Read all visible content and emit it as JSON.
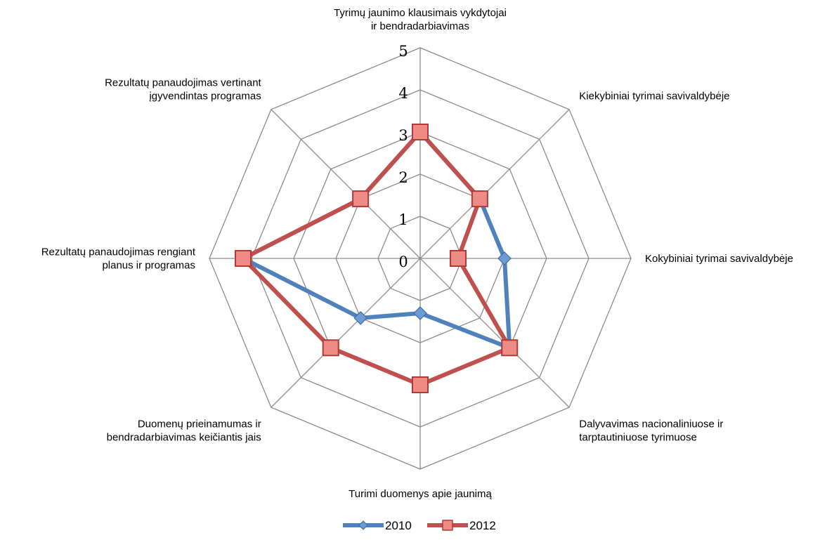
{
  "chart_data": {
    "type": "radar",
    "axes": [
      [
        "Tyrimų jaunimo klausimais vykdytojai",
        "ir bendradarbiavimas"
      ],
      [
        "Kiekybiniai tyrimai savivaldybėje"
      ],
      [
        "Kokybiniai tyrimai savivaldybėje"
      ],
      [
        "Dalyvavimas nacionaliniuose ir",
        "tarptautiniuose tyrimuose"
      ],
      [
        "Turimi duomenys apie jaunimą"
      ],
      [
        "Duomenų prieinamumas ir",
        "bendradarbiavimas keičiantis jais"
      ],
      [
        "Rezultatų panaudojimas rengiant",
        "planus ir programas"
      ],
      [
        "Rezultatų panaudojimas vertinant",
        "įgyvendintas programas"
      ]
    ],
    "ticks": [
      "0",
      "1",
      "2",
      "3",
      "4",
      "5"
    ],
    "range": [
      0,
      5
    ],
    "series": [
      {
        "name": "2010",
        "values": [
          3,
          2,
          2,
          3,
          1.3,
          2,
          4.2,
          2
        ],
        "color": "#4F81BD",
        "marker": "diamond"
      },
      {
        "name": "2012",
        "values": [
          3,
          2,
          0.9,
          3,
          3,
          3,
          4.2,
          2
        ],
        "color": "#C0504D",
        "marker": "square"
      }
    ],
    "legend_position": "bottom",
    "grid": true
  }
}
